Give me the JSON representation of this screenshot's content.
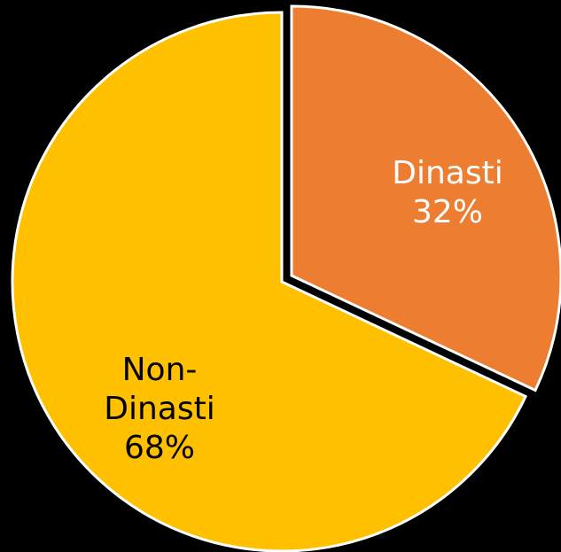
{
  "chart_data": {
    "type": "pie",
    "categories": [
      "Dinasti",
      "Non-Dinasti"
    ],
    "values": [
      32,
      68
    ],
    "value_labels": [
      "32%",
      "68%"
    ],
    "colors": [
      "#ED7D31",
      "#FFC000"
    ],
    "label_colors": [
      "#ffffff",
      "#000000"
    ]
  }
}
